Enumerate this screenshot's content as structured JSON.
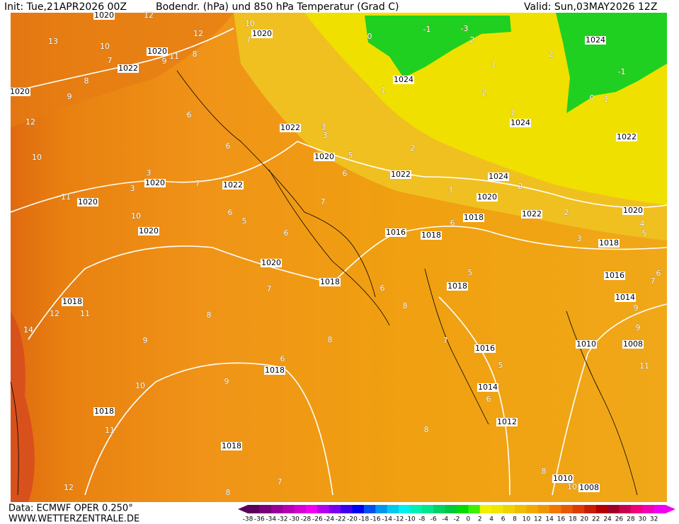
{
  "header": {
    "init": "Init: Tue,21APR2026 00Z",
    "title": "Bodendr. (hPa) und 850 hPa Temperatur (Grad C)",
    "valid": "Valid: Sun,03MAY2026 12Z"
  },
  "footer": {
    "data": "Data: ECMWF OPER 0.250°",
    "site": "WWW.WETTERZENTRALE.DE"
  },
  "legend": {
    "ticks": [
      -38,
      -36,
      -34,
      -32,
      -30,
      -28,
      -26,
      -24,
      -22,
      -20,
      -18,
      -16,
      -14,
      -12,
      -10,
      -8,
      -6,
      -4,
      -2,
      0,
      2,
      4,
      6,
      8,
      10,
      12,
      14,
      16,
      18,
      20,
      22,
      24,
      26,
      28,
      30,
      32
    ],
    "colors": [
      "#5a005a",
      "#780078",
      "#960096",
      "#b400b4",
      "#d200d2",
      "#f000f0",
      "#b400f0",
      "#7800f0",
      "#3c00f0",
      "#0000f0",
      "#0050f0",
      "#0096f0",
      "#00c8f0",
      "#00f0f0",
      "#00f0b4",
      "#00e68c",
      "#00d264",
      "#00c83c",
      "#00dc00",
      "#3cf000",
      "#f0f000",
      "#f0e600",
      "#f0d200",
      "#f0be00",
      "#f0aa00",
      "#f09600",
      "#f07800",
      "#e65a00",
      "#dc3c00",
      "#c81e00",
      "#b40000",
      "#a00028",
      "#c80050",
      "#f00078",
      "#f000b4",
      "#f000f0"
    ]
  },
  "isobar_labels": [
    1020,
    1020,
    1020,
    1022,
    1020,
    1024,
    1024,
    1022,
    1020,
    1022,
    1024,
    1024,
    1022,
    1020,
    1020,
    1022,
    1020,
    1020,
    1022,
    1020,
    1016,
    1018,
    1018,
    1018,
    1020,
    1018,
    1016,
    1018,
    1018,
    1014,
    1010,
    1008,
    1016,
    1018,
    1014,
    1018,
    1012,
    1018,
    1010,
    1008
  ],
  "temperature_labels": [
    12,
    13,
    10,
    7,
    9,
    8,
    11,
    12,
    10,
    7,
    8,
    9,
    12,
    10,
    6,
    6,
    3,
    3,
    11,
    10,
    7,
    6,
    5,
    6,
    7,
    6,
    5,
    3,
    3,
    0,
    -1,
    -3,
    2,
    1,
    2,
    1,
    1,
    2,
    2,
    -1,
    0,
    1,
    2,
    3,
    2,
    3,
    4,
    5,
    6,
    5,
    6,
    7,
    7,
    6,
    8,
    8,
    9,
    12,
    11,
    14,
    9,
    8,
    7,
    9,
    6,
    5,
    11,
    9,
    10,
    6,
    8,
    11,
    8,
    7,
    8,
    12,
    10
  ]
}
